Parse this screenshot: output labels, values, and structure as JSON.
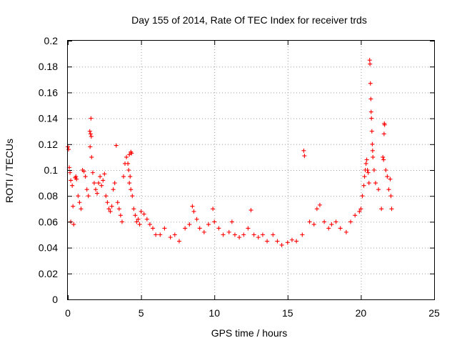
{
  "chart_data": {
    "type": "scatter",
    "title": "Day 155 of 2014, Rate Of TEC Index for receiver trds",
    "xlabel": "GPS time / hours",
    "ylabel": "ROTI / TECUs",
    "xlim": [
      0,
      25
    ],
    "ylim": [
      0,
      0.2
    ],
    "xticks": [
      0,
      5,
      10,
      15,
      20,
      25
    ],
    "xtick_labels": [
      "0",
      "5",
      "10",
      "15",
      "20",
      "25"
    ],
    "yticks": [
      0,
      0.02,
      0.04,
      0.06,
      0.08,
      0.1,
      0.12,
      0.14,
      0.16,
      0.18,
      0.2
    ],
    "ytick_labels": [
      "0",
      "0.02",
      "0.04",
      "0.06",
      "0.08",
      "0.1",
      "0.12",
      "0.14",
      "0.16",
      "0.18",
      "0.2"
    ],
    "grid": true,
    "marker": "+",
    "color": "#ff0000",
    "series": [
      {
        "name": "ROTI",
        "points": [
          [
            0.0,
            0.118
          ],
          [
            0.05,
            0.116
          ],
          [
            0.1,
            0.102
          ],
          [
            0.15,
            0.098
          ],
          [
            0.2,
            0.092
          ],
          [
            0.3,
            0.088
          ],
          [
            0.35,
            0.072
          ],
          [
            0.2,
            0.06
          ],
          [
            0.4,
            0.058
          ],
          [
            0.5,
            0.094
          ],
          [
            0.55,
            0.095
          ],
          [
            0.6,
            0.093
          ],
          [
            0.7,
            0.08
          ],
          [
            0.8,
            0.075
          ],
          [
            0.9,
            0.07
          ],
          [
            1.0,
            0.1
          ],
          [
            1.1,
            0.099
          ],
          [
            1.2,
            0.095
          ],
          [
            1.3,
            0.085
          ],
          [
            1.4,
            0.08
          ],
          [
            1.5,
            0.13
          ],
          [
            1.55,
            0.128
          ],
          [
            1.6,
            0.126
          ],
          [
            1.58,
            0.14
          ],
          [
            1.52,
            0.118
          ],
          [
            1.62,
            0.11
          ],
          [
            1.7,
            0.098
          ],
          [
            1.8,
            0.09
          ],
          [
            1.9,
            0.085
          ],
          [
            2.0,
            0.082
          ],
          [
            2.1,
            0.09
          ],
          [
            2.2,
            0.095
          ],
          [
            2.3,
            0.088
          ],
          [
            2.4,
            0.092
          ],
          [
            2.5,
            0.097
          ],
          [
            2.6,
            0.08
          ],
          [
            2.7,
            0.075
          ],
          [
            2.8,
            0.07
          ],
          [
            2.9,
            0.068
          ],
          [
            3.0,
            0.072
          ],
          [
            3.1,
            0.085
          ],
          [
            3.2,
            0.09
          ],
          [
            3.3,
            0.119
          ],
          [
            3.4,
            0.075
          ],
          [
            3.5,
            0.07
          ],
          [
            3.6,
            0.065
          ],
          [
            3.7,
            0.06
          ],
          [
            3.8,
            0.095
          ],
          [
            3.9,
            0.105
          ],
          [
            4.0,
            0.11
          ],
          [
            4.1,
            0.105
          ],
          [
            4.15,
            0.1
          ],
          [
            4.2,
            0.112
          ],
          [
            4.3,
            0.114
          ],
          [
            4.35,
            0.113
          ],
          [
            4.25,
            0.095
          ],
          [
            4.2,
            0.09
          ],
          [
            4.3,
            0.085
          ],
          [
            4.4,
            0.08
          ],
          [
            4.5,
            0.07
          ],
          [
            4.6,
            0.065
          ],
          [
            4.7,
            0.06
          ],
          [
            4.8,
            0.062
          ],
          [
            4.9,
            0.058
          ],
          [
            5.0,
            0.068
          ],
          [
            5.2,
            0.066
          ],
          [
            5.4,
            0.062
          ],
          [
            5.6,
            0.058
          ],
          [
            5.8,
            0.055
          ],
          [
            6.0,
            0.05
          ],
          [
            6.3,
            0.05
          ],
          [
            6.6,
            0.055
          ],
          [
            7.0,
            0.048
          ],
          [
            7.3,
            0.05
          ],
          [
            7.6,
            0.045
          ],
          [
            8.0,
            0.055
          ],
          [
            8.3,
            0.058
          ],
          [
            8.5,
            0.072
          ],
          [
            8.6,
            0.068
          ],
          [
            8.8,
            0.062
          ],
          [
            9.0,
            0.055
          ],
          [
            9.3,
            0.052
          ],
          [
            9.6,
            0.058
          ],
          [
            9.9,
            0.07
          ],
          [
            10.0,
            0.06
          ],
          [
            10.3,
            0.055
          ],
          [
            10.6,
            0.05
          ],
          [
            11.0,
            0.052
          ],
          [
            11.2,
            0.06
          ],
          [
            11.4,
            0.05
          ],
          [
            11.7,
            0.048
          ],
          [
            12.0,
            0.05
          ],
          [
            12.3,
            0.055
          ],
          [
            12.5,
            0.069
          ],
          [
            12.7,
            0.05
          ],
          [
            13.0,
            0.048
          ],
          [
            13.3,
            0.05
          ],
          [
            13.6,
            0.045
          ],
          [
            14.0,
            0.05
          ],
          [
            14.3,
            0.045
          ],
          [
            14.6,
            0.042
          ],
          [
            15.0,
            0.044
          ],
          [
            15.3,
            0.046
          ],
          [
            15.6,
            0.045
          ],
          [
            16.0,
            0.05
          ],
          [
            16.1,
            0.115
          ],
          [
            16.15,
            0.111
          ],
          [
            16.5,
            0.06
          ],
          [
            16.8,
            0.058
          ],
          [
            17.0,
            0.07
          ],
          [
            17.2,
            0.073
          ],
          [
            17.5,
            0.06
          ],
          [
            17.8,
            0.055
          ],
          [
            18.0,
            0.058
          ],
          [
            18.3,
            0.06
          ],
          [
            18.6,
            0.055
          ],
          [
            19.0,
            0.052
          ],
          [
            19.3,
            0.06
          ],
          [
            19.6,
            0.065
          ],
          [
            19.9,
            0.068
          ],
          [
            20.0,
            0.07
          ],
          [
            20.1,
            0.08
          ],
          [
            20.2,
            0.088
          ],
          [
            20.25,
            0.095
          ],
          [
            20.3,
            0.1
          ],
          [
            20.35,
            0.105
          ],
          [
            20.4,
            0.108
          ],
          [
            20.45,
            0.1
          ],
          [
            20.5,
            0.098
          ],
          [
            20.55,
            0.09
          ],
          [
            20.6,
            0.185
          ],
          [
            20.62,
            0.182
          ],
          [
            20.65,
            0.167
          ],
          [
            20.68,
            0.155
          ],
          [
            20.7,
            0.145
          ],
          [
            20.72,
            0.14
          ],
          [
            20.75,
            0.13
          ],
          [
            20.78,
            0.12
          ],
          [
            20.8,
            0.115
          ],
          [
            20.82,
            0.11
          ],
          [
            20.9,
            0.1
          ],
          [
            21.0,
            0.09
          ],
          [
            21.2,
            0.085
          ],
          [
            21.4,
            0.07
          ],
          [
            21.5,
            0.11
          ],
          [
            21.55,
            0.108
          ],
          [
            21.6,
            0.136
          ],
          [
            21.62,
            0.135
          ],
          [
            21.58,
            0.128
          ],
          [
            21.7,
            0.1
          ],
          [
            21.8,
            0.095
          ],
          [
            21.9,
            0.085
          ],
          [
            22.0,
            0.093
          ],
          [
            22.05,
            0.08
          ],
          [
            22.1,
            0.07
          ]
        ]
      }
    ]
  }
}
